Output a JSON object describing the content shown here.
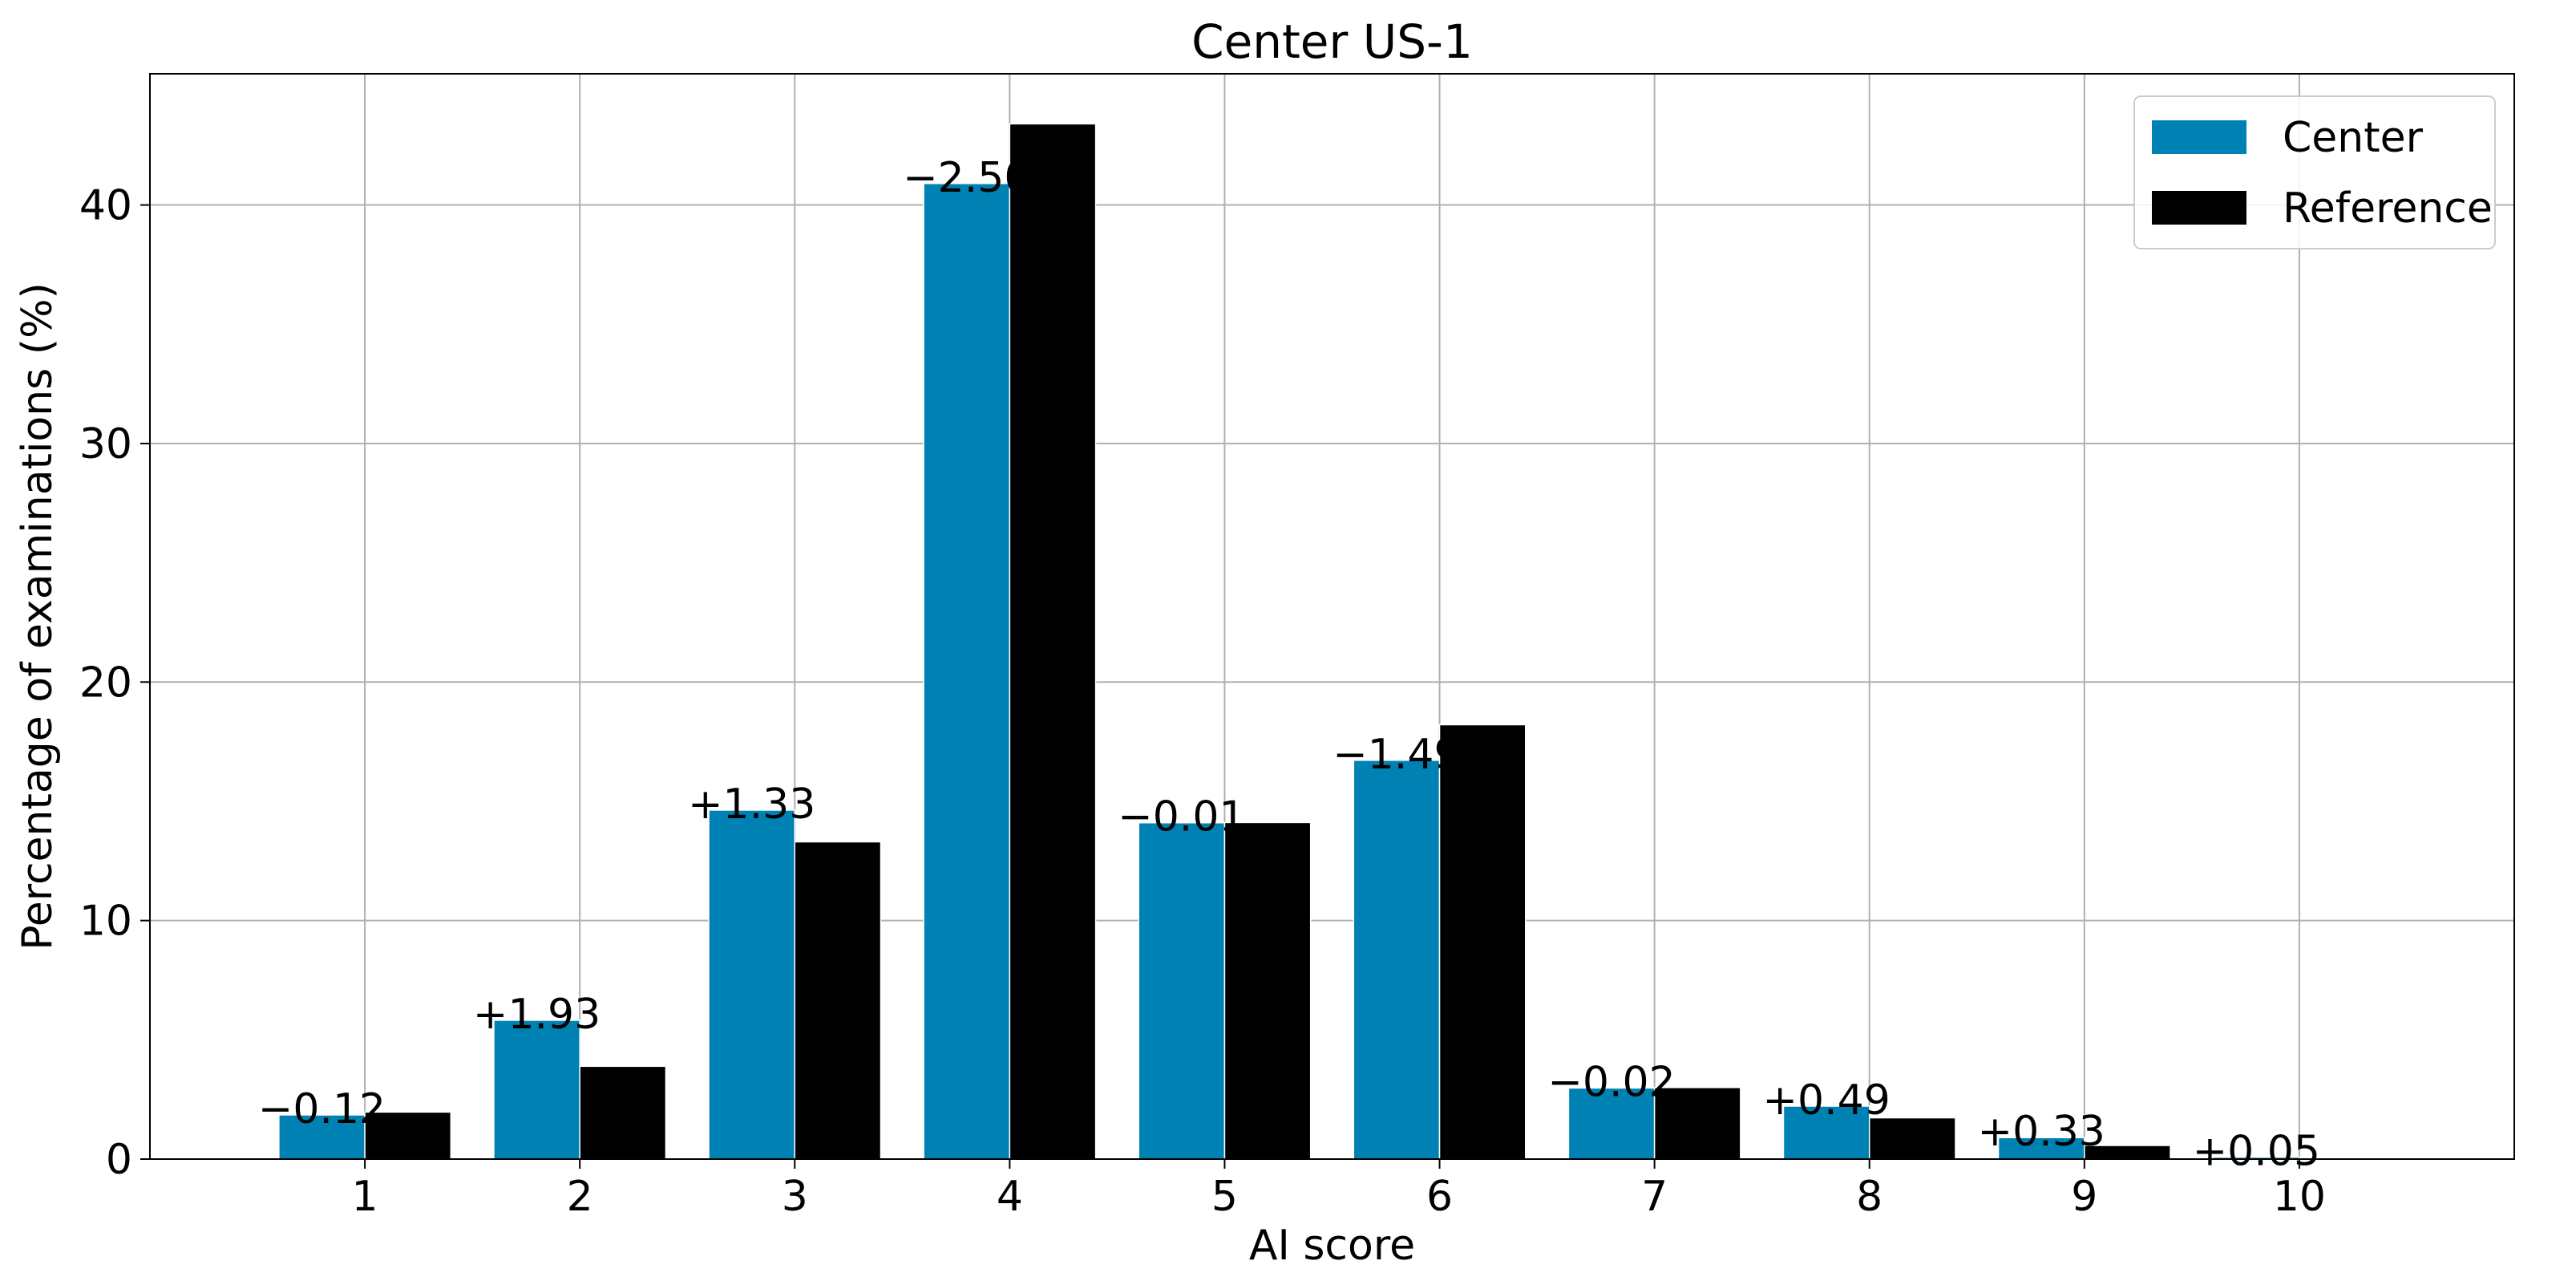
{
  "chart_data": {
    "type": "bar",
    "title": "Center US-1",
    "xlabel": "AI score",
    "ylabel": "Percentage of examinations (%)",
    "categories": [
      "1",
      "2",
      "3",
      "4",
      "5",
      "6",
      "7",
      "8",
      "9",
      "10"
    ],
    "series": [
      {
        "name": "Center",
        "color": "#0081b4",
        "values": [
          1.85,
          5.82,
          14.63,
          40.9,
          14.1,
          16.72,
          2.98,
          2.22,
          0.9,
          0.08
        ]
      },
      {
        "name": "Reference",
        "color": "#000000",
        "values": [
          1.97,
          3.89,
          13.3,
          43.4,
          14.11,
          18.21,
          3.0,
          1.73,
          0.57,
          0.03
        ]
      }
    ],
    "annotations": [
      "−0.12",
      "+1.93",
      "+1.33",
      "−2.50",
      "−0.01",
      "−1.49",
      "−0.02",
      "+0.49",
      "+0.33",
      "+0.05"
    ],
    "yticks": [
      "0",
      "10",
      "20",
      "30",
      "40"
    ],
    "ylim": [
      0,
      45.5
    ],
    "grid": true,
    "legend_position": "top-right"
  }
}
